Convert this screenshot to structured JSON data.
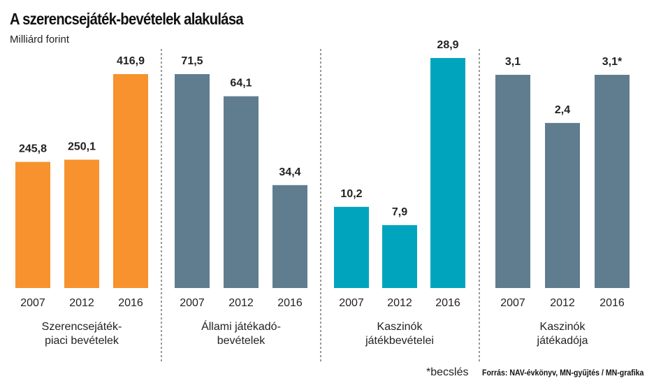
{
  "chart_data": {
    "type": "bar",
    "title": "A szerencsejáték-bevételek alakulása",
    "subtitle": "Milliárd forint",
    "note": "*becslés",
    "source": "Forrás: NAV-évkönyv, MN-gyűjtés / MN-grafika",
    "panels": [
      {
        "name": [
          "Szerencsejáték-",
          "piaci bevételek"
        ],
        "color": "#F7922E",
        "categories": [
          "2007",
          "2012",
          "2016"
        ],
        "values": [
          245.8,
          250.1,
          416.9
        ],
        "labels": [
          "245,8",
          "250,1",
          "416,9"
        ]
      },
      {
        "name": [
          "Állami játékadó-",
          "bevételek"
        ],
        "color": "#607D8F",
        "categories": [
          "2007",
          "2012",
          "2016"
        ],
        "values": [
          71.5,
          64.1,
          34.4
        ],
        "labels": [
          "71,5",
          "64,1",
          "34,4"
        ]
      },
      {
        "name": [
          "Kaszinók",
          "játékbevételei"
        ],
        "color": "#00A5BD",
        "categories": [
          "2007",
          "2012",
          "2016"
        ],
        "values": [
          10.2,
          7.9,
          28.9
        ],
        "labels": [
          "10,2",
          "7,9",
          "28,9"
        ]
      },
      {
        "name": [
          "Kaszinók",
          "játékadója"
        ],
        "color": "#607D8F",
        "categories": [
          "2007",
          "2012",
          "2016"
        ],
        "values": [
          3.1,
          2.4,
          3.1
        ],
        "labels": [
          "3,1",
          "2,4",
          "3,1*"
        ]
      }
    ]
  }
}
